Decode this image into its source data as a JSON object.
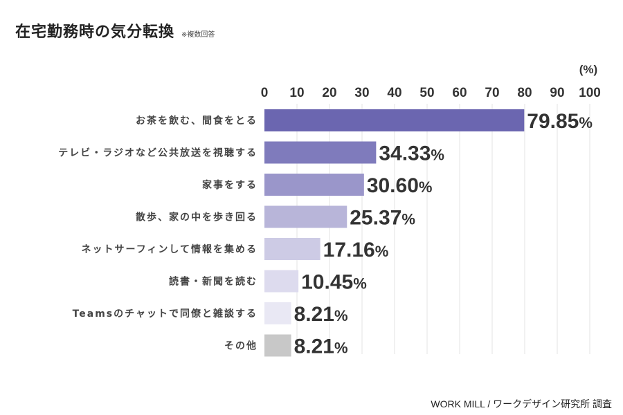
{
  "chart_data": {
    "type": "bar",
    "orientation": "horizontal",
    "title": "在宅勤務時の気分転換",
    "note": "※複数回答",
    "unit_label": "(%)",
    "xlim": [
      0,
      100
    ],
    "ticks": [
      0,
      10,
      20,
      30,
      40,
      50,
      60,
      70,
      80,
      90,
      100
    ],
    "grid": true,
    "categories": [
      "お茶を飲む、間食をとる",
      "テレビ・ラジオなど公共放送を視聴する",
      "家事をする",
      "散歩、家の中を歩き回る",
      "ネットサーフィンして情報を集める",
      "読書・新聞を読む",
      "Teamsのチャットで同僚と雑談する",
      "その他"
    ],
    "values": [
      79.85,
      34.33,
      30.6,
      25.37,
      17.16,
      10.45,
      8.21,
      8.21
    ],
    "value_labels": [
      "79.85",
      "34.33",
      "30.60",
      "25.37",
      "17.16",
      "10.45",
      "8.21",
      "8.21"
    ],
    "value_suffix": "%",
    "colors": [
      "#6b66b0",
      "#7f7bbc",
      "#9a96ca",
      "#b8b5d9",
      "#cdcbe5",
      "#dddbee",
      "#e9e8f4",
      "#c8c8c8"
    ]
  },
  "footer": {
    "credit": "WORK MILL / ワークデザイン研究所 調査"
  }
}
